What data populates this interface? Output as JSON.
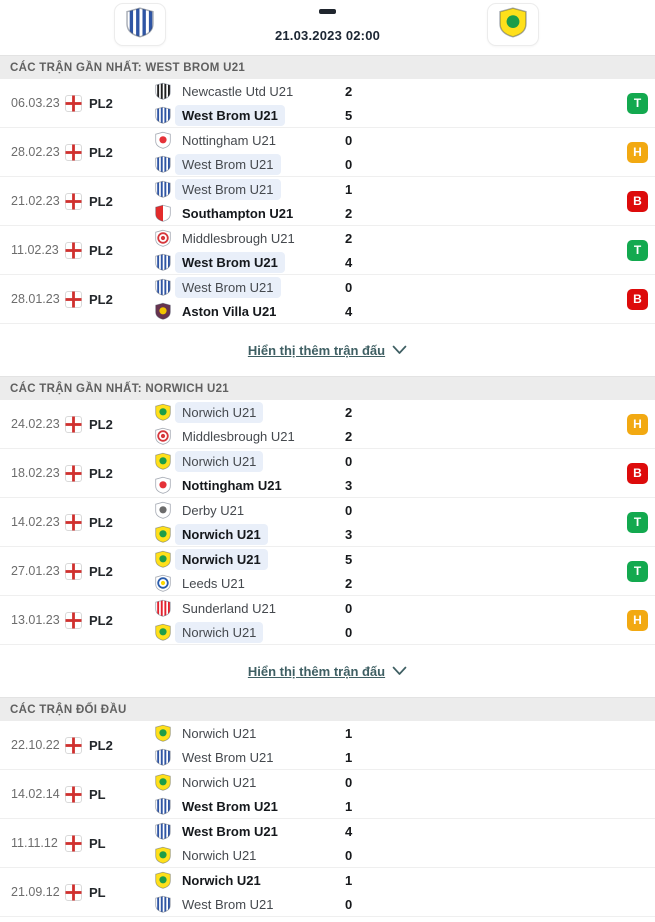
{
  "header": {
    "home_team": "West Brom U21",
    "away_team": "Norwich U21",
    "home_logo": "westbrom",
    "away_logo": "norwich",
    "score_placeholder": "-",
    "datetime": "21.03.2023 02:00"
  },
  "result_colors": {
    "T": "#13a94f",
    "H": "#f2a912",
    "B": "#dd0b0b"
  },
  "highlight_color": "#e9eff9",
  "team_logos": {
    "westbrom": {
      "style": "stripes",
      "colors": [
        "#ffffff",
        "#2f55a4"
      ]
    },
    "norwich": {
      "style": "solid",
      "colors": [
        "#ffe01b",
        "#1d9d49"
      ]
    },
    "newcastle": {
      "style": "stripes",
      "colors": [
        "#ffffff",
        "#1f1f1f"
      ]
    },
    "nottingham": {
      "style": "solid",
      "colors": [
        "#ffffff",
        "#e53138"
      ]
    },
    "southampton": {
      "style": "halves",
      "colors": [
        "#e32b2b",
        "#ffffff"
      ]
    },
    "middlesbrough": {
      "style": "circle",
      "colors": [
        "#ffffff",
        "#d6373c",
        "#d6373c"
      ]
    },
    "astonvilla": {
      "style": "solid",
      "colors": [
        "#67334f",
        "#f2c500"
      ]
    },
    "derby": {
      "style": "solid",
      "colors": [
        "#ffffff",
        "#6b6b6b"
      ]
    },
    "leeds": {
      "style": "circle",
      "colors": [
        "#ffffff",
        "#2a5cab",
        "#ffd800"
      ]
    },
    "sunderland": {
      "style": "stripes",
      "colors": [
        "#ffffff",
        "#e3212e"
      ]
    }
  },
  "sections": [
    {
      "title": "CÁC TRẬN GẦN NHẤT: WEST BROM U21",
      "show_more": "Hiển thị thêm trận đấu",
      "matches": [
        {
          "date": "06.03.23",
          "league": "PL2",
          "home": {
            "name": "Newcastle Utd U21",
            "score": "2",
            "bold": false,
            "hl": false,
            "logo": "newcastle"
          },
          "away": {
            "name": "West Brom U21",
            "score": "5",
            "bold": true,
            "hl": true,
            "logo": "westbrom"
          },
          "result": "T"
        },
        {
          "date": "28.02.23",
          "league": "PL2",
          "home": {
            "name": "Nottingham U21",
            "score": "0",
            "bold": false,
            "hl": false,
            "logo": "nottingham"
          },
          "away": {
            "name": "West Brom U21",
            "score": "0",
            "bold": false,
            "hl": true,
            "logo": "westbrom"
          },
          "result": "H"
        },
        {
          "date": "21.02.23",
          "league": "PL2",
          "home": {
            "name": "West Brom U21",
            "score": "1",
            "bold": false,
            "hl": true,
            "logo": "westbrom"
          },
          "away": {
            "name": "Southampton U21",
            "score": "2",
            "bold": true,
            "hl": false,
            "logo": "southampton"
          },
          "result": "B"
        },
        {
          "date": "11.02.23",
          "league": "PL2",
          "home": {
            "name": "Middlesbrough U21",
            "score": "2",
            "bold": false,
            "hl": false,
            "logo": "middlesbrough"
          },
          "away": {
            "name": "West Brom U21",
            "score": "4",
            "bold": true,
            "hl": true,
            "logo": "westbrom"
          },
          "result": "T"
        },
        {
          "date": "28.01.23",
          "league": "PL2",
          "home": {
            "name": "West Brom U21",
            "score": "0",
            "bold": false,
            "hl": true,
            "logo": "westbrom"
          },
          "away": {
            "name": "Aston Villa U21",
            "score": "4",
            "bold": true,
            "hl": false,
            "logo": "astonvilla"
          },
          "result": "B"
        }
      ]
    },
    {
      "title": "CÁC TRẬN GẦN NHẤT: NORWICH U21",
      "show_more": "Hiển thị thêm trận đấu",
      "matches": [
        {
          "date": "24.02.23",
          "league": "PL2",
          "home": {
            "name": "Norwich U21",
            "score": "2",
            "bold": false,
            "hl": true,
            "logo": "norwich"
          },
          "away": {
            "name": "Middlesbrough U21",
            "score": "2",
            "bold": false,
            "hl": false,
            "logo": "middlesbrough"
          },
          "result": "H"
        },
        {
          "date": "18.02.23",
          "league": "PL2",
          "home": {
            "name": "Norwich U21",
            "score": "0",
            "bold": false,
            "hl": true,
            "logo": "norwich"
          },
          "away": {
            "name": "Nottingham U21",
            "score": "3",
            "bold": true,
            "hl": false,
            "logo": "nottingham"
          },
          "result": "B"
        },
        {
          "date": "14.02.23",
          "league": "PL2",
          "home": {
            "name": "Derby U21",
            "score": "0",
            "bold": false,
            "hl": false,
            "logo": "derby"
          },
          "away": {
            "name": "Norwich U21",
            "score": "3",
            "bold": true,
            "hl": true,
            "logo": "norwich"
          },
          "result": "T"
        },
        {
          "date": "27.01.23",
          "league": "PL2",
          "home": {
            "name": "Norwich U21",
            "score": "5",
            "bold": true,
            "hl": true,
            "logo": "norwich"
          },
          "away": {
            "name": "Leeds U21",
            "score": "2",
            "bold": false,
            "hl": false,
            "logo": "leeds"
          },
          "result": "T"
        },
        {
          "date": "13.01.23",
          "league": "PL2",
          "home": {
            "name": "Sunderland U21",
            "score": "0",
            "bold": false,
            "hl": false,
            "logo": "sunderland"
          },
          "away": {
            "name": "Norwich U21",
            "score": "0",
            "bold": false,
            "hl": true,
            "logo": "norwich"
          },
          "result": "H"
        }
      ]
    },
    {
      "title": "CÁC TRẬN ĐỐI ĐẦU",
      "show_more": null,
      "matches": [
        {
          "date": "22.10.22",
          "league": "PL2",
          "home": {
            "name": "Norwich U21",
            "score": "1",
            "bold": false,
            "hl": false,
            "logo": "norwich"
          },
          "away": {
            "name": "West Brom U21",
            "score": "1",
            "bold": false,
            "hl": false,
            "logo": "westbrom"
          },
          "result": null
        },
        {
          "date": "14.02.14",
          "league": "PL",
          "home": {
            "name": "Norwich U21",
            "score": "0",
            "bold": false,
            "hl": false,
            "logo": "norwich"
          },
          "away": {
            "name": "West Brom U21",
            "score": "1",
            "bold": true,
            "hl": false,
            "logo": "westbrom"
          },
          "result": null
        },
        {
          "date": "11.11.12",
          "league": "PL",
          "home": {
            "name": "West Brom U21",
            "score": "4",
            "bold": true,
            "hl": false,
            "logo": "westbrom"
          },
          "away": {
            "name": "Norwich U21",
            "score": "0",
            "bold": false,
            "hl": false,
            "logo": "norwich"
          },
          "result": null
        },
        {
          "date": "21.09.12",
          "league": "PL",
          "home": {
            "name": "Norwich U21",
            "score": "1",
            "bold": true,
            "hl": false,
            "logo": "norwich"
          },
          "away": {
            "name": "West Brom U21",
            "score": "0",
            "bold": false,
            "hl": false,
            "logo": "westbrom"
          },
          "result": null
        }
      ]
    }
  ]
}
